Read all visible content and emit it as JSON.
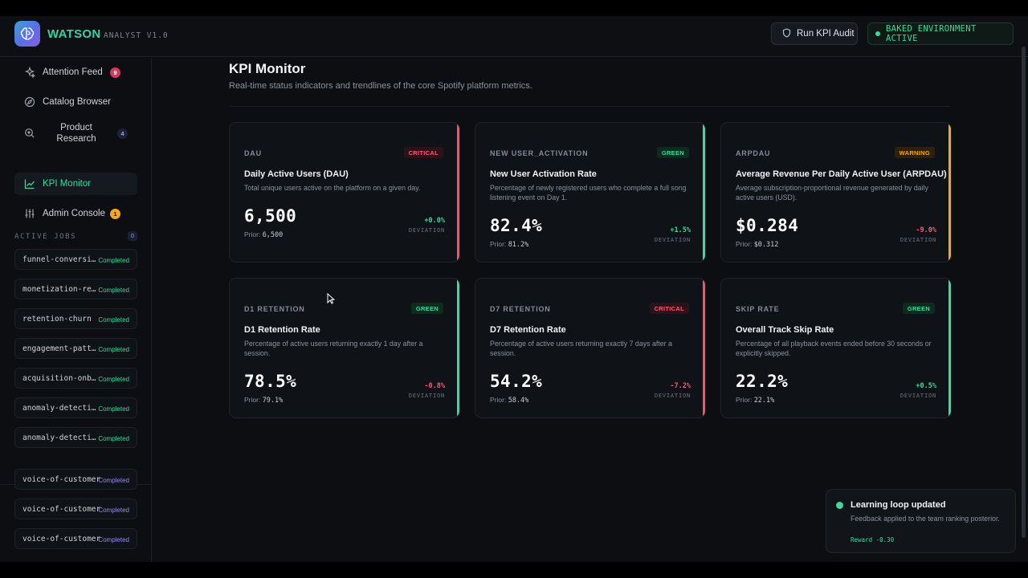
{
  "app": {
    "brand": "WATSON",
    "brand_sub": "ANALYST V1.0",
    "audit_button": "Run KPI Audit",
    "env_badge": "BAKED ENVIRONMENT ACTIVE"
  },
  "sidebar": {
    "nav": [
      {
        "label": "Attention Feed",
        "icon": "sparkle-icon",
        "badge": "9"
      },
      {
        "label": "Catalog Browser",
        "icon": "compass-icon"
      },
      {
        "label": "Product Research",
        "icon": "search-icon",
        "badge": "4"
      },
      {
        "label": "KPI Monitor",
        "icon": "chart-line-icon"
      },
      {
        "label": "Admin Console",
        "icon": "sliders-icon",
        "badge": "1"
      }
    ],
    "jobs_header": "ACTIVE JOBS",
    "jobs_count": "0",
    "jobs": [
      {
        "name": "funnel-conversion",
        "status": "Completed"
      },
      {
        "name": "monetization-revenue",
        "status": "Completed"
      },
      {
        "name": "retention-churn",
        "status": "Completed"
      },
      {
        "name": "engagement-patterns",
        "status": "Completed"
      },
      {
        "name": "acquisition-onboarding",
        "status": "Completed"
      },
      {
        "name": "anomaly-detection",
        "status": "Completed"
      },
      {
        "name": "anomaly-detection",
        "status": "Completed"
      },
      {
        "name": "voice-of-customer",
        "status": "Completed"
      },
      {
        "name": "voice-of-customer",
        "status": "Completed"
      },
      {
        "name": "voice-of-customer",
        "status": "Completed"
      }
    ]
  },
  "main": {
    "title": "KPI Monitor",
    "subtitle": "Real-time status indicators and trendlines of the core Spotify platform metrics."
  },
  "cards": [
    {
      "key": "DAU",
      "status": "CRITICAL",
      "status_type": "critical",
      "title": "Daily Active Users (DAU)",
      "desc": "Total unique users active on the platform on a given day.",
      "value": "6,500",
      "prior_label": "Prior:",
      "prior": "6,500",
      "deviation": "+0.0%",
      "dev_sign": "pos",
      "dev_label": "DEVIATION",
      "accent": "#ff4d63"
    },
    {
      "key": "NEW USER_ACTIVATION",
      "status": "GREEN",
      "status_type": "green",
      "title": "New User Activation Rate",
      "desc": "Percentage of newly registered users who complete a full song listening event on Day 1.",
      "value": "82.4%",
      "prior_label": "Prior:",
      "prior": "81.2%",
      "deviation": "+1.5%",
      "dev_sign": "pos",
      "dev_label": "DEVIATION",
      "accent": "#3fd99a"
    },
    {
      "key": "ARPDAU",
      "status": "WARNING",
      "status_type": "warning",
      "title": "Average Revenue Per Daily Active User (ARPDAU)",
      "desc": "Average subscription-proportional revenue generated by daily active users (USD).",
      "value": "$0.284",
      "prior_label": "Prior:",
      "prior": "$0.312",
      "deviation": "-9.0%",
      "dev_sign": "neg",
      "dev_label": "DEVIATION",
      "accent": "#f5a623"
    },
    {
      "key": "D1 RETENTION",
      "status": "GREEN",
      "status_type": "green",
      "title": "D1 Retention Rate",
      "desc": "Percentage of active users returning exactly 1 day after a session.",
      "value": "78.5%",
      "prior_label": "Prior:",
      "prior": "79.1%",
      "deviation": "-0.8%",
      "dev_sign": "neg",
      "dev_label": "DEVIATION",
      "accent": "#3fd99a"
    },
    {
      "key": "D7 RETENTION",
      "status": "CRITICAL",
      "status_type": "critical",
      "title": "D7 Retention Rate",
      "desc": "Percentage of active users returning exactly 7 days after a session.",
      "value": "54.2%",
      "prior_label": "Prior:",
      "prior": "58.4%",
      "deviation": "-7.2%",
      "dev_sign": "neg",
      "dev_label": "DEVIATION",
      "accent": "#ff4d63"
    },
    {
      "key": "SKIP RATE",
      "status": "GREEN",
      "status_type": "green",
      "title": "Overall Track Skip Rate",
      "desc": "Percentage of all playback events ended before 30 seconds or explicitly skipped.",
      "value": "22.2%",
      "prior_label": "Prior:",
      "prior": "22.1%",
      "deviation": "+0.5%",
      "dev_sign": "pos",
      "dev_label": "DEVIATION",
      "accent": "#3fd99a"
    }
  ],
  "toast": {
    "title": "Learning loop updated",
    "body": "Feedback applied to the team ranking posterior.",
    "reward": "Reward -0.30"
  }
}
